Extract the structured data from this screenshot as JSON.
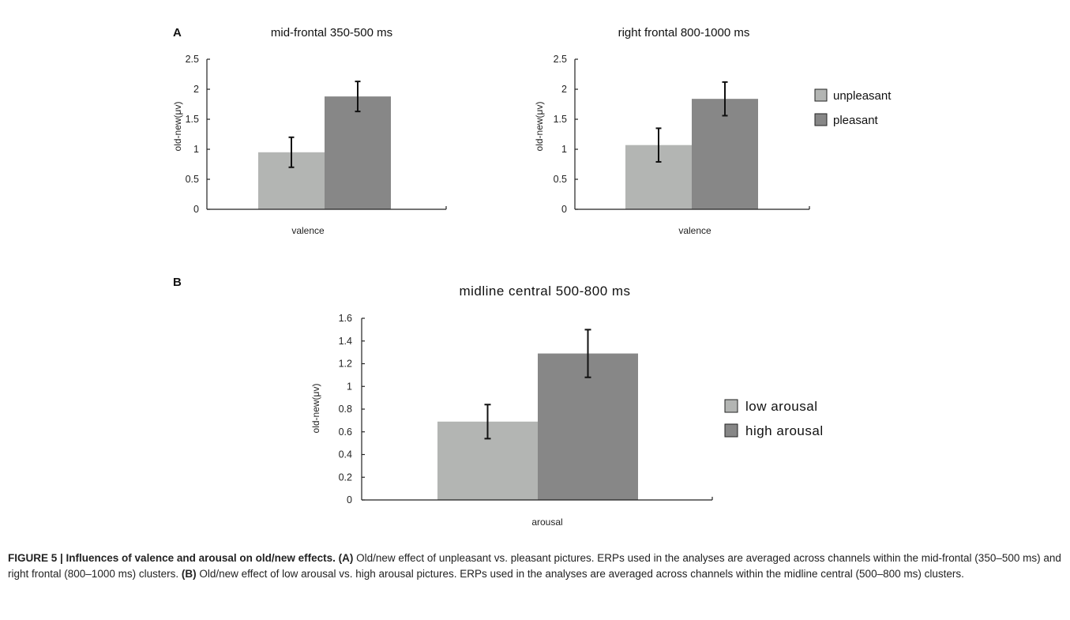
{
  "panels": [
    {
      "letter": "A"
    },
    {
      "letter": "B"
    }
  ],
  "legend_valence": [
    "unpleasant",
    "pleasant"
  ],
  "legend_arousal": [
    "low arousal",
    "high arousal"
  ],
  "colors": {
    "light_bar": "#b3b5b3",
    "dark_bar": "#878787",
    "axis": "#222222"
  },
  "chart_data": [
    {
      "type": "bar",
      "title": "mid-frontal  350-500 ms",
      "xlabel": "valence",
      "ylabel": "old-new(μv)",
      "ylim": [
        0,
        2.5
      ],
      "yticks": [
        "0",
        "0.5",
        "1",
        "1.5",
        "2",
        "2.5"
      ],
      "grid": false,
      "legend": "right",
      "series": [
        {
          "name": "unpleasant",
          "value": 0.95,
          "error": 0.25
        },
        {
          "name": "pleasant",
          "value": 1.88,
          "error": 0.25
        }
      ]
    },
    {
      "type": "bar",
      "title": "right frontal  800-1000 ms",
      "xlabel": "valence",
      "ylabel": "old-new(μv)",
      "ylim": [
        0,
        2.5
      ],
      "yticks": [
        "0",
        "0.5",
        "1",
        "1.5",
        "2",
        "2.5"
      ],
      "grid": false,
      "legend": "right",
      "series": [
        {
          "name": "unpleasant",
          "value": 1.07,
          "error": 0.28
        },
        {
          "name": "pleasant",
          "value": 1.84,
          "error": 0.28
        }
      ]
    },
    {
      "type": "bar",
      "title": "midline central    500-800 ms",
      "xlabel": "arousal",
      "ylabel": "old-new(μv)",
      "ylim": [
        0,
        1.6
      ],
      "yticks": [
        "0",
        "0.2",
        "0.4",
        "0.6",
        "0.8",
        "1",
        "1.2",
        "1.4",
        "1.6"
      ],
      "grid": false,
      "legend": "right",
      "series": [
        {
          "name": "low arousal",
          "value": 0.69,
          "error": 0.15
        },
        {
          "name": "high arousal",
          "value": 1.29,
          "error": 0.21
        }
      ]
    }
  ],
  "caption": {
    "bold": "FIGURE 5 | Influences of valence and arousal on old/new effects. (A)",
    "part1": " Old/new effect of unpleasant vs. pleasant pictures. ERPs used in the analyses are averaged across channels within the mid-frontal (350–500 ms) and right frontal (800–1000 ms) clusters. ",
    "bold_b": "(B)",
    "part2": " Old/new effect of low arousal vs. high arousal pictures. ERPs used in the analyses are averaged across channels within the midline central (500–800 ms) clusters."
  }
}
